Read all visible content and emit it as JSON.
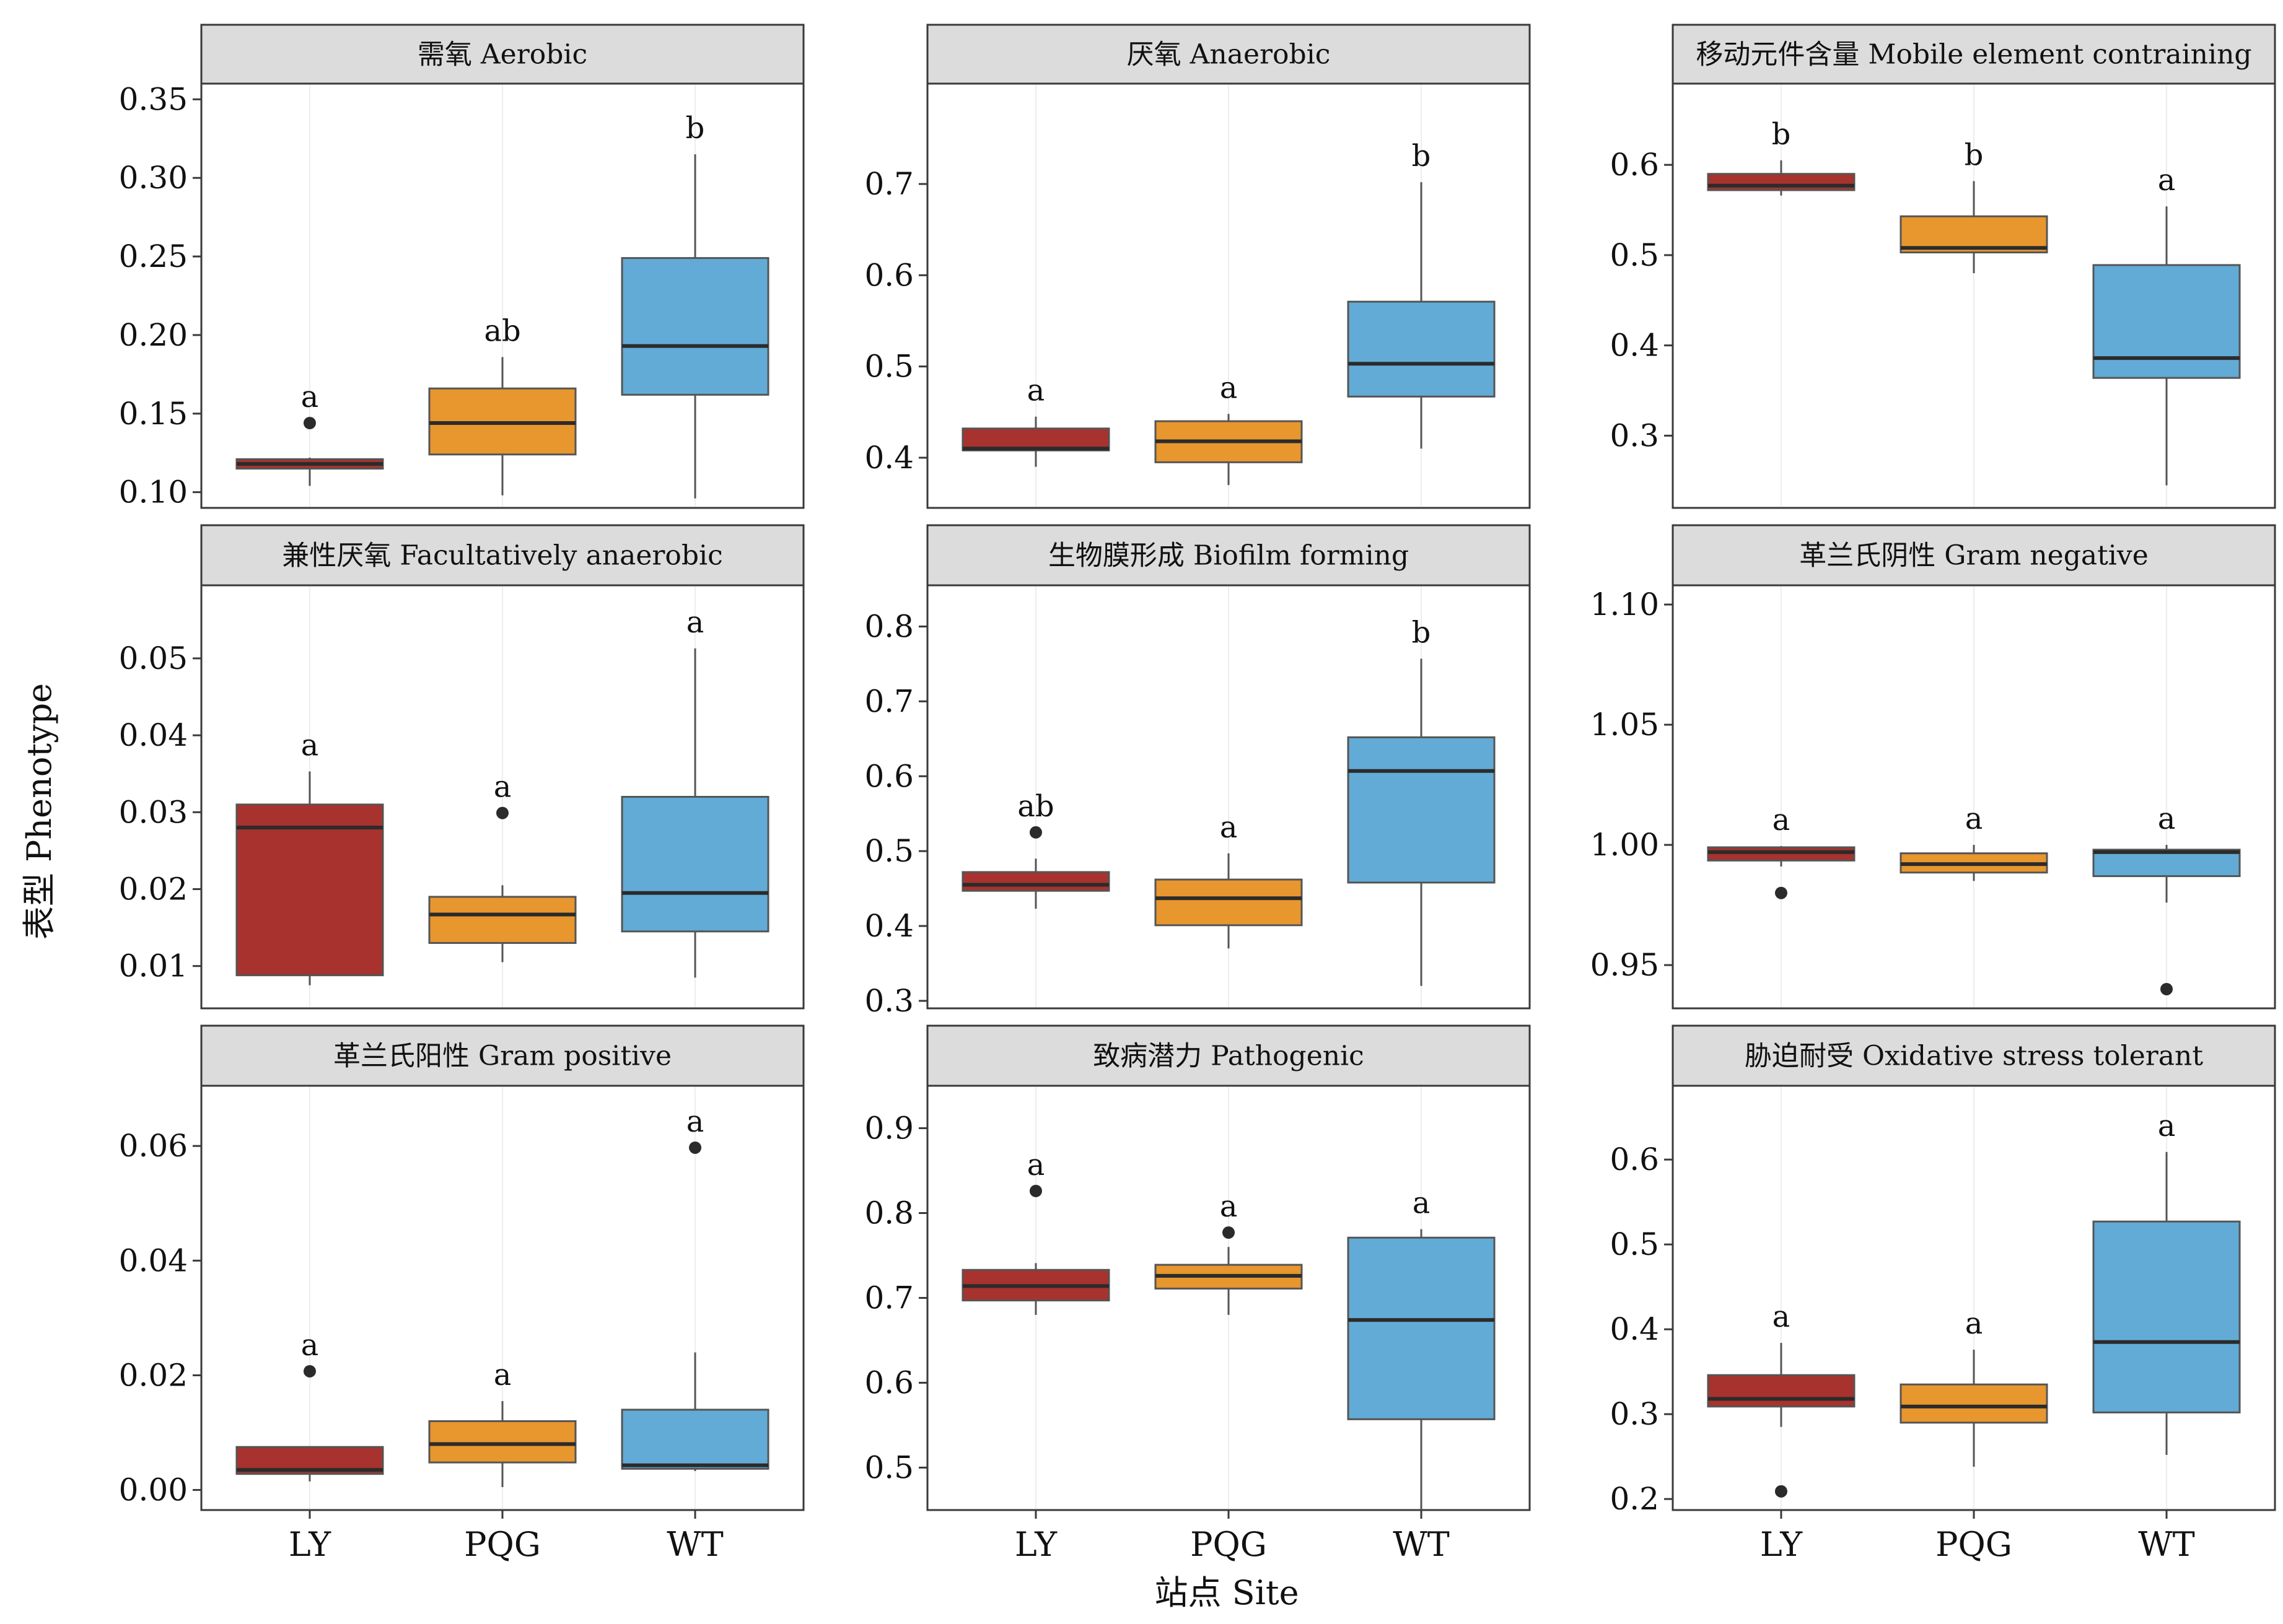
{
  "ylabel": "表型 Phenotype",
  "xlabel": "站点 Site",
  "sites": [
    "LY",
    "PQG",
    "WT"
  ],
  "colors": {
    "LY": "#a8322d",
    "PQG": "#e8962e",
    "WT": "#62abd6"
  },
  "chart_data": {
    "type": "boxplot",
    "categories": [
      "LY",
      "PQG",
      "WT"
    ],
    "panels": [
      {
        "title": "需氧 Aerobic",
        "ylim": [
          0.09,
          0.36
        ],
        "ticks": [
          "0.10",
          "0.15",
          "0.20",
          "0.25",
          "0.30",
          "0.35"
        ],
        "groups": [
          {
            "site": "LY",
            "min": 0.104,
            "q1": 0.115,
            "median": 0.118,
            "q3": 0.121,
            "max": 0.122,
            "outliers": [
              0.144
            ],
            "sig": "a"
          },
          {
            "site": "PQG",
            "min": 0.098,
            "q1": 0.124,
            "median": 0.144,
            "q3": 0.166,
            "max": 0.186,
            "outliers": [],
            "sig": "ab"
          },
          {
            "site": "WT",
            "min": 0.096,
            "q1": 0.162,
            "median": 0.193,
            "q3": 0.249,
            "max": 0.315,
            "outliers": [],
            "sig": "b"
          }
        ]
      },
      {
        "title": "厌氧 Anaerobic",
        "ylim": [
          0.345,
          0.81
        ],
        "ticks": [
          "0.4",
          "0.5",
          "0.6",
          "0.7"
        ],
        "groups": [
          {
            "site": "LY",
            "min": 0.39,
            "q1": 0.408,
            "median": 0.41,
            "q3": 0.432,
            "max": 0.445,
            "outliers": [],
            "sig": "a"
          },
          {
            "site": "PQG",
            "min": 0.37,
            "q1": 0.395,
            "median": 0.418,
            "q3": 0.44,
            "max": 0.448,
            "outliers": [],
            "sig": "a"
          },
          {
            "site": "WT",
            "min": 0.41,
            "q1": 0.467,
            "median": 0.503,
            "q3": 0.571,
            "max": 0.702,
            "outliers": [],
            "sig": "b"
          }
        ]
      },
      {
        "title": "移动元件含量 Mobile element contraining",
        "ylim": [
          0.22,
          0.69
        ],
        "ticks": [
          "0.3",
          "0.4",
          "0.5",
          "0.6"
        ],
        "groups": [
          {
            "site": "LY",
            "min": 0.566,
            "q1": 0.572,
            "median": 0.577,
            "q3": 0.59,
            "max": 0.605,
            "outliers": [],
            "sig": "b"
          },
          {
            "site": "PQG",
            "min": 0.48,
            "q1": 0.503,
            "median": 0.508,
            "q3": 0.543,
            "max": 0.582,
            "outliers": [],
            "sig": "b"
          },
          {
            "site": "WT",
            "min": 0.245,
            "q1": 0.364,
            "median": 0.386,
            "q3": 0.489,
            "max": 0.554,
            "outliers": [],
            "sig": "a"
          }
        ]
      },
      {
        "title": "兼性厌氧 Facultatively anaerobic",
        "ylim": [
          0.0045,
          0.0595
        ],
        "ticks": [
          "0.01",
          "0.02",
          "0.03",
          "0.04",
          "0.05"
        ],
        "groups": [
          {
            "site": "LY",
            "min": 0.0075,
            "q1": 0.0088,
            "median": 0.028,
            "q3": 0.031,
            "max": 0.0353,
            "outliers": [],
            "sig": "a"
          },
          {
            "site": "PQG",
            "min": 0.0105,
            "q1": 0.013,
            "median": 0.0167,
            "q3": 0.019,
            "max": 0.0205,
            "outliers": [
              0.0299
            ],
            "sig": "a"
          },
          {
            "site": "WT",
            "min": 0.0085,
            "q1": 0.0145,
            "median": 0.0195,
            "q3": 0.032,
            "max": 0.0513,
            "outliers": [],
            "sig": "a"
          }
        ]
      },
      {
        "title": "生物膜形成 Biofilm forming",
        "ylim": [
          0.29,
          0.855
        ],
        "ticks": [
          "0.3",
          "0.4",
          "0.5",
          "0.6",
          "0.7",
          "0.8"
        ],
        "groups": [
          {
            "site": "LY",
            "min": 0.423,
            "q1": 0.447,
            "median": 0.455,
            "q3": 0.472,
            "max": 0.49,
            "outliers": [
              0.525
            ],
            "sig": "ab"
          },
          {
            "site": "PQG",
            "min": 0.37,
            "q1": 0.401,
            "median": 0.437,
            "q3": 0.462,
            "max": 0.497,
            "outliers": [],
            "sig": "a"
          },
          {
            "site": "WT",
            "min": 0.32,
            "q1": 0.458,
            "median": 0.607,
            "q3": 0.652,
            "max": 0.757,
            "outliers": [],
            "sig": "b"
          }
        ]
      },
      {
        "title": "革兰氏阴性 Gram negative",
        "ylim": [
          0.932,
          1.108
        ],
        "ticks": [
          "0.95",
          "1.00",
          "1.05",
          "1.10"
        ],
        "groups": [
          {
            "site": "LY",
            "min": 0.991,
            "q1": 0.9935,
            "median": 0.997,
            "q3": 0.999,
            "max": 0.9995,
            "outliers": [
              0.98
            ],
            "sig": "a"
          },
          {
            "site": "PQG",
            "min": 0.985,
            "q1": 0.9885,
            "median": 0.992,
            "q3": 0.9965,
            "max": 1.0,
            "outliers": [],
            "sig": "a"
          },
          {
            "site": "WT",
            "min": 0.976,
            "q1": 0.987,
            "median": 0.997,
            "q3": 0.998,
            "max": 1.0,
            "outliers": [
              0.94
            ],
            "sig": "a"
          }
        ]
      },
      {
        "title": "革兰氏阳性 Gram positive",
        "ylim": [
          -0.0035,
          0.0705
        ],
        "ticks": [
          "0.00",
          "0.02",
          "0.04",
          "0.06"
        ],
        "groups": [
          {
            "site": "LY",
            "min": 0.0015,
            "q1": 0.0028,
            "median": 0.0035,
            "q3": 0.0075,
            "max": 0.0075,
            "outliers": [
              0.0207
            ],
            "sig": "a"
          },
          {
            "site": "PQG",
            "min": 0.0005,
            "q1": 0.0048,
            "median": 0.008,
            "q3": 0.012,
            "max": 0.0155,
            "outliers": [],
            "sig": "a"
          },
          {
            "site": "WT",
            "min": 0.0033,
            "q1": 0.0037,
            "median": 0.0043,
            "q3": 0.014,
            "max": 0.024,
            "outliers": [
              0.0597
            ],
            "sig": "a"
          }
        ]
      },
      {
        "title": "致病潜力 Pathogenic",
        "ylim": [
          0.45,
          0.95
        ],
        "ticks": [
          "0.5",
          "0.6",
          "0.7",
          "0.8",
          "0.9"
        ],
        "groups": [
          {
            "site": "LY",
            "min": 0.68,
            "q1": 0.697,
            "median": 0.714,
            "q3": 0.733,
            "max": 0.741,
            "outliers": [
              0.826
            ],
            "sig": "a"
          },
          {
            "site": "PQG",
            "min": 0.68,
            "q1": 0.711,
            "median": 0.726,
            "q3": 0.739,
            "max": 0.76,
            "outliers": [
              0.777
            ],
            "sig": "a"
          },
          {
            "site": "WT",
            "min": 0.45,
            "q1": 0.557,
            "median": 0.674,
            "q3": 0.771,
            "max": 0.781,
            "outliers": [],
            "sig": "a"
          }
        ]
      },
      {
        "title": "胁迫耐受 Oxidative stress tolerant",
        "ylim": [
          0.187,
          0.687
        ],
        "ticks": [
          "0.2",
          "0.3",
          "0.4",
          "0.5",
          "0.6"
        ],
        "groups": [
          {
            "site": "LY",
            "min": 0.285,
            "q1": 0.309,
            "median": 0.318,
            "q3": 0.346,
            "max": 0.384,
            "outliers": [
              0.209
            ],
            "sig": "a"
          },
          {
            "site": "PQG",
            "min": 0.238,
            "q1": 0.29,
            "median": 0.309,
            "q3": 0.335,
            "max": 0.376,
            "outliers": [],
            "sig": "a"
          },
          {
            "site": "WT",
            "min": 0.252,
            "q1": 0.302,
            "median": 0.385,
            "q3": 0.527,
            "max": 0.609,
            "outliers": [],
            "sig": "a"
          }
        ]
      }
    ]
  }
}
